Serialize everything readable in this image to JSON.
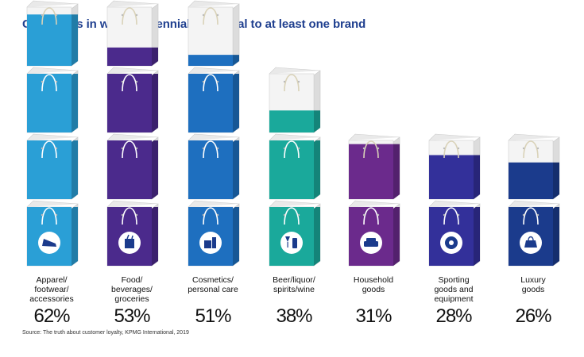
{
  "chart_data": {
    "type": "bar",
    "title": "Categories in which Millennials are loyal to at least one brand",
    "xlabel": "",
    "ylabel": "",
    "ylim": [
      0,
      100
    ],
    "unit": "%",
    "categories": [
      [
        "Apparel/",
        "footwear/",
        "accessories"
      ],
      [
        "Food/",
        "beverages/",
        "groceries"
      ],
      [
        "Cosmetics/",
        "personal care"
      ],
      [
        "Beer/liquor/",
        "spirits/wine"
      ],
      [
        "Household",
        "goods"
      ],
      [
        "Sporting",
        "goods and",
        "equipment"
      ],
      [
        "Luxury",
        "goods"
      ]
    ],
    "values": [
      62,
      53,
      51,
      38,
      31,
      28,
      26
    ],
    "value_labels": [
      "62%",
      "53%",
      "51%",
      "38%",
      "31%",
      "28%",
      "26%"
    ],
    "colors": [
      "#2a9fd6",
      "#4b2a8c",
      "#1e6fbf",
      "#1aa99b",
      "#6b2a8c",
      "#33309a",
      "#1b3b8c"
    ],
    "icons": [
      "shoe-icon",
      "grocery-bag-icon",
      "cosmetics-icon",
      "wine-glass-icon",
      "sofa-icon",
      "ball-icon",
      "handbag-icon"
    ],
    "grid": false,
    "legend": "none"
  },
  "source": "Source: The truth about customer loyalty, KPMG International, 2019"
}
